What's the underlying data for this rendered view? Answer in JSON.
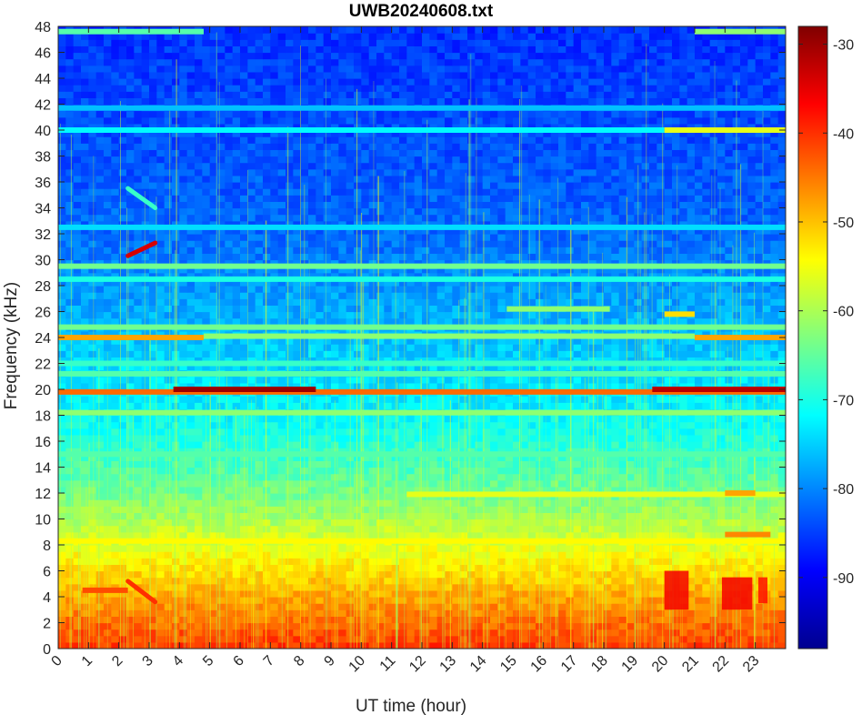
{
  "chart_data": {
    "type": "heatmap",
    "title": "UWB20240608.txt",
    "xlabel": "UT time (hour)",
    "ylabel": "Frequency (kHz)",
    "xlim": [
      0,
      24
    ],
    "ylim": [
      0,
      48
    ],
    "x_ticks": [
      0,
      1,
      2,
      3,
      4,
      5,
      6,
      7,
      8,
      9,
      10,
      11,
      12,
      13,
      14,
      15,
      16,
      17,
      18,
      19,
      20,
      21,
      22,
      23
    ],
    "y_ticks": [
      0,
      2,
      4,
      6,
      8,
      10,
      12,
      14,
      16,
      18,
      20,
      22,
      24,
      26,
      28,
      30,
      32,
      34,
      36,
      38,
      40,
      42,
      44,
      46,
      48
    ],
    "colorbar": {
      "colormap": "jet",
      "clim": [
        -98,
        -28
      ],
      "ticks": [
        -90,
        -80,
        -70,
        -60,
        -50,
        -40,
        -30
      ]
    },
    "background_profile": [
      {
        "freq": 0,
        "level": -40
      },
      {
        "freq": 1,
        "level": -42
      },
      {
        "freq": 3,
        "level": -46
      },
      {
        "freq": 6,
        "level": -52
      },
      {
        "freq": 9,
        "level": -58
      },
      {
        "freq": 12,
        "level": -64
      },
      {
        "freq": 15,
        "level": -68
      },
      {
        "freq": 18,
        "level": -72
      },
      {
        "freq": 24,
        "level": -76
      },
      {
        "freq": 32,
        "level": -82
      },
      {
        "freq": 40,
        "level": -84
      },
      {
        "freq": 48,
        "level": -86
      }
    ],
    "transmitter_lines": [
      {
        "freq": 19.8,
        "t_start": 0,
        "t_end": 24,
        "level": -44
      },
      {
        "freq": 20.0,
        "t_start": 3.8,
        "t_end": 8.5,
        "level": -30
      },
      {
        "freq": 20.0,
        "t_start": 19.6,
        "t_end": 24,
        "level": -32
      },
      {
        "freq": 24.0,
        "t_start": 0,
        "t_end": 4.8,
        "level": -48
      },
      {
        "freq": 24.0,
        "t_start": 21.0,
        "t_end": 24,
        "level": -48
      },
      {
        "freq": 24.1,
        "t_start": 4.8,
        "t_end": 21.0,
        "level": -62
      },
      {
        "freq": 24.8,
        "t_start": 0,
        "t_end": 24,
        "level": -64
      },
      {
        "freq": 29.5,
        "t_start": 0,
        "t_end": 24,
        "level": -64
      },
      {
        "freq": 28.5,
        "t_start": 0,
        "t_end": 24,
        "level": -70
      },
      {
        "freq": 40.0,
        "t_start": 0,
        "t_end": 20.0,
        "level": -72
      },
      {
        "freq": 40.0,
        "t_start": 20.0,
        "t_end": 24,
        "level": -56
      },
      {
        "freq": 41.7,
        "t_start": 0,
        "t_end": 24,
        "level": -76
      },
      {
        "freq": 32.5,
        "t_start": 0,
        "t_end": 24,
        "level": -74
      },
      {
        "freq": 18.2,
        "t_start": 0,
        "t_end": 24,
        "level": -62
      },
      {
        "freq": 21.2,
        "t_start": 0,
        "t_end": 24,
        "level": -66
      },
      {
        "freq": 22.0,
        "t_start": 0,
        "t_end": 24,
        "level": -68
      },
      {
        "freq": 15.0,
        "t_start": 0,
        "t_end": 24,
        "level": -66
      },
      {
        "freq": 8.3,
        "t_start": 0,
        "t_end": 24,
        "level": -54
      },
      {
        "freq": 11.9,
        "t_start": 11.5,
        "t_end": 24,
        "level": -56
      },
      {
        "freq": 4.5,
        "t_start": 0.8,
        "t_end": 2.3,
        "level": -42
      },
      {
        "freq": 47.6,
        "t_start": 0,
        "t_end": 4.8,
        "level": -66
      },
      {
        "freq": 47.6,
        "t_start": 21.0,
        "t_end": 24,
        "level": -62
      },
      {
        "freq": 26.2,
        "t_start": 14.8,
        "t_end": 18.2,
        "level": -62
      },
      {
        "freq": 25.8,
        "t_start": 20.0,
        "t_end": 21.0,
        "level": -52
      },
      {
        "freq": 12.0,
        "t_start": 22.0,
        "t_end": 23.0,
        "level": -48
      },
      {
        "freq": 8.8,
        "t_start": 22.0,
        "t_end": 23.5,
        "level": -46
      }
    ],
    "sweep_features": [
      {
        "t_start": 2.3,
        "t_end": 3.2,
        "f_start": 30.3,
        "f_end": 31.3,
        "level": -34
      },
      {
        "t_start": 2.3,
        "t_end": 3.2,
        "f_start": 35.5,
        "f_end": 34.0,
        "level": -68
      },
      {
        "t_start": 2.3,
        "t_end": 3.2,
        "f_start": 5.2,
        "f_end": 3.6,
        "level": -40
      }
    ],
    "enhanced_regions": [
      {
        "t_start": 20.0,
        "t_end": 20.8,
        "f_start": 3.0,
        "f_end": 6.0,
        "level": -36
      },
      {
        "t_start": 21.9,
        "t_end": 22.9,
        "f_start": 3.0,
        "f_end": 5.5,
        "level": -36
      },
      {
        "t_start": 23.1,
        "t_end": 23.4,
        "f_start": 3.5,
        "f_end": 5.5,
        "level": -38
      }
    ]
  }
}
